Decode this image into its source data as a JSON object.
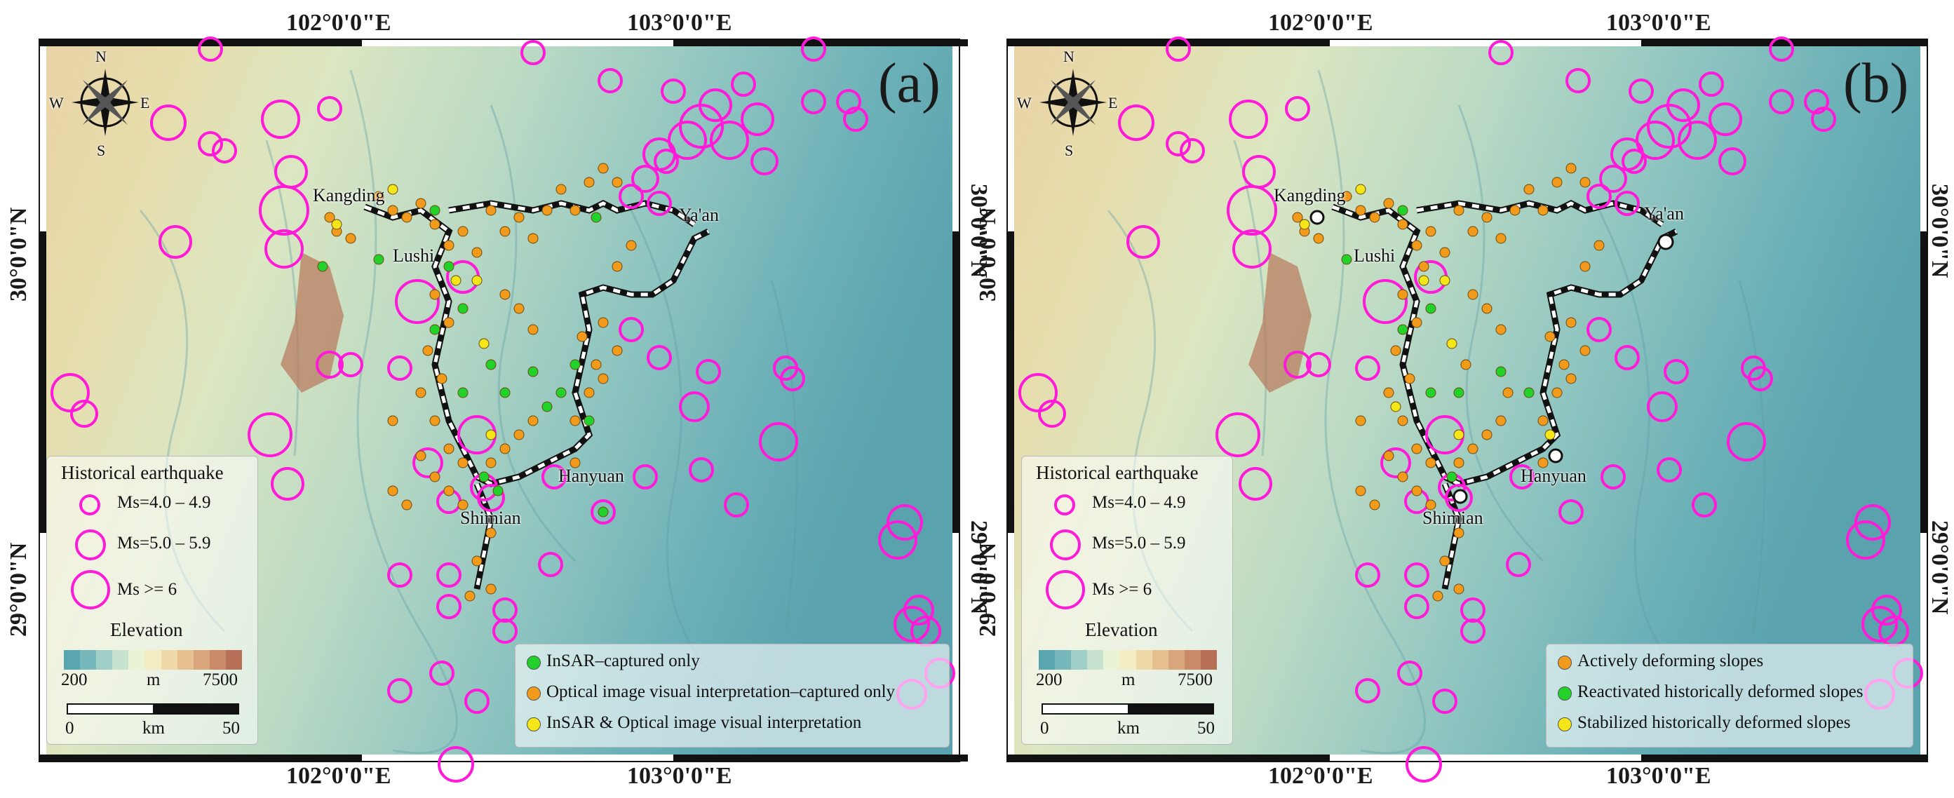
{
  "colors": {
    "earthquake_ring": "#ff1ad9",
    "insar_only": "#22d22a",
    "optical_only": "#f29a1c",
    "both": "#f5e61a",
    "actively_deforming": "#f29a1c",
    "reactivated": "#22d22a",
    "stabilized": "#f5e61a",
    "elevation_ramp": [
      "#5aa6b0",
      "#77b8bc",
      "#9fcfc6",
      "#c7e3cf",
      "#eaf3d4",
      "#f4edc4",
      "#f0d9a8",
      "#e7c08f",
      "#d9a57a",
      "#c98a68",
      "#b76f57"
    ]
  },
  "coordinates": {
    "lon_labels": [
      "102°0'0\"E",
      "103°0'0\"E"
    ],
    "lat_labels": [
      "30°0'0\"N",
      "29°0'0\"N"
    ]
  },
  "panels": {
    "a": {
      "label": "(a)",
      "legend_items": [
        {
          "text": "InSAR–captured only",
          "color": "#22d22a"
        },
        {
          "text": "Optical image visual interpretation–captured only",
          "color": "#f29a1c"
        },
        {
          "text": "InSAR & Optical image visual interpretation",
          "color": "#f5e61a"
        }
      ]
    },
    "b": {
      "label": "(b)",
      "legend_items": [
        {
          "text": "Actively deforming slopes",
          "color": "#f29a1c"
        },
        {
          "text": "Reactivated historically deformed slopes",
          "color": "#22d22a"
        },
        {
          "text": "Stabilized historically deformed slopes",
          "color": "#f5e61a"
        }
      ]
    }
  },
  "cities": {
    "kangding": "Kangding",
    "lushi": "Lushi",
    "yaan": "Ya'an",
    "hanyuan": "Hanyuan",
    "shimian": "Shimian"
  },
  "compass": {
    "n": "N",
    "s": "S",
    "e": "E",
    "w": "W"
  },
  "earthquake_legend": {
    "title": "Historical earthquake",
    "ms1": "Ms=4.0 – 4.9",
    "ms2": "Ms=5.0 – 5.9",
    "ms3": "Ms >= 6"
  },
  "elevation_legend": {
    "title": "Elevation",
    "min": "200",
    "unit": "m",
    "max": "7500"
  },
  "scale_bar": {
    "start": "0",
    "unit": "km",
    "end": "50"
  }
}
